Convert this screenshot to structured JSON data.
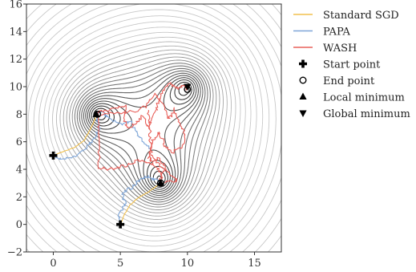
{
  "chart_data": {
    "type": "line",
    "title": "",
    "xlabel": "",
    "ylabel": "",
    "xlim": [
      -2,
      17
    ],
    "ylim": [
      -2,
      16
    ],
    "xticks": [
      0,
      5,
      10,
      15
    ],
    "yticks": [
      -2,
      0,
      2,
      4,
      6,
      8,
      10,
      12,
      14,
      16
    ],
    "grid": false,
    "legend_position": "outside-right",
    "contours": {
      "description_of_levels": "concentric level sets of a three-well loss surface",
      "wells": [
        {
          "x": 3.2,
          "y": 8.0
        },
        {
          "x": 8.0,
          "y": 3.0
        },
        {
          "x": 10.0,
          "y": 10.0
        }
      ],
      "inner_color": "#2b2b2b",
      "outer_color": "#bdbdbd"
    },
    "series": [
      {
        "name": "Standard SGD",
        "color": "#f2c14e",
        "paths": [
          [
            [
              0,
              5
            ],
            [
              0.8,
              5.3
            ],
            [
              1.6,
              5.6
            ],
            [
              2.3,
              6.1
            ],
            [
              2.7,
              6.8
            ],
            [
              3.0,
              7.4
            ],
            [
              3.2,
              7.9
            ],
            [
              3.35,
              8.1
            ]
          ],
          [
            [
              5,
              0
            ],
            [
              5.3,
              0.7
            ],
            [
              5.7,
              1.4
            ],
            [
              6.3,
              1.9
            ],
            [
              7.0,
              2.3
            ],
            [
              7.6,
              2.7
            ],
            [
              8.0,
              3.0
            ]
          ]
        ]
      },
      {
        "name": "PAPA",
        "color": "#7fa6d8",
        "paths": [
          [
            [
              0,
              5
            ],
            [
              0.6,
              4.7
            ],
            [
              1.5,
              4.9
            ],
            [
              2.4,
              5.5
            ],
            [
              3.0,
              6.2
            ],
            [
              3.4,
              6.9
            ],
            [
              3.3,
              7.6
            ],
            [
              3.1,
              8.0
            ],
            [
              3.6,
              8.2
            ],
            [
              4.3,
              7.6
            ],
            [
              5.0,
              7.3
            ],
            [
              5.8,
              7.4
            ],
            [
              6.3,
              6.6
            ],
            [
              6.6,
              6.1
            ],
            [
              7.3,
              5.5
            ]
          ],
          [
            [
              5,
              0
            ],
            [
              4.9,
              0.8
            ],
            [
              5.4,
              1.5
            ],
            [
              5.1,
              2.2
            ],
            [
              5.8,
              2.7
            ],
            [
              6.4,
              3.2
            ],
            [
              6.9,
              3.5
            ],
            [
              7.5,
              3.3
            ],
            [
              8.0,
              3.0
            ]
          ]
        ]
      },
      {
        "name": "WASH",
        "color": "#e8605a",
        "paths": [
          [
            [
              3.3,
              8.1
            ],
            [
              4.5,
              8.4
            ],
            [
              5.4,
              8.6
            ],
            [
              5.2,
              7.6
            ],
            [
              5.6,
              7.0
            ],
            [
              6.2,
              7.4
            ],
            [
              6.7,
              7.9
            ],
            [
              7.1,
              7.0
            ],
            [
              7.6,
              8.2
            ],
            [
              7.9,
              9.0
            ],
            [
              8.2,
              9.7
            ],
            [
              8.7,
              10.2
            ],
            [
              9.3,
              9.9
            ],
            [
              9.8,
              10.1
            ],
            [
              10.0,
              9.8
            ]
          ],
          [
            [
              3.6,
              8.0
            ],
            [
              4.8,
              8.1
            ],
            [
              6.0,
              8.2
            ],
            [
              7.0,
              8.6
            ],
            [
              7.5,
              9.6
            ],
            [
              8.2,
              8.7
            ],
            [
              8.6,
              7.6
            ],
            [
              9.0,
              8.4
            ],
            [
              9.4,
              7.3
            ],
            [
              9.8,
              6.6
            ],
            [
              9.6,
              5.6
            ],
            [
              8.8,
              5.2
            ],
            [
              8.3,
              5.8
            ],
            [
              7.9,
              6.7
            ],
            [
              7.4,
              6.2
            ],
            [
              7.1,
              5.0
            ],
            [
              7.3,
              4.6
            ],
            [
              7.9,
              4.8
            ],
            [
              8.3,
              4.2
            ],
            [
              8.0,
              3.4
            ],
            [
              8.0,
              3.0
            ]
          ],
          [
            [
              3.4,
              8.2
            ],
            [
              3.4,
              7.0
            ],
            [
              3.4,
              4.1
            ],
            [
              4.5,
              4.0
            ],
            [
              5.4,
              4.3
            ],
            [
              6.4,
              4.7
            ],
            [
              7.2,
              4.5
            ],
            [
              7.9,
              4.0
            ],
            [
              8.1,
              3.1
            ]
          ],
          [
            [
              7.1,
              8.2
            ],
            [
              7.2,
              7.2
            ],
            [
              7.2,
              6.2
            ],
            [
              7.3,
              5.2
            ],
            [
              7.9,
              4.3
            ],
            [
              8.6,
              3.8
            ],
            [
              9.2,
              3.2
            ],
            [
              8.3,
              3.0
            ]
          ]
        ]
      }
    ],
    "markers": [
      {
        "name": "Start point",
        "symbol": "plus",
        "points": [
          [
            0,
            5
          ],
          [
            5,
            0
          ]
        ]
      },
      {
        "name": "End point",
        "symbol": "circle-open",
        "points": [
          [
            3.3,
            8.0
          ],
          [
            8.0,
            3.0
          ],
          [
            10.0,
            9.8
          ]
        ]
      },
      {
        "name": "Local minimum",
        "symbol": "triangle-up",
        "points": [
          [
            3.2,
            8.0
          ],
          [
            8.0,
            3.0
          ]
        ]
      },
      {
        "name": "Global minimum",
        "symbol": "triangle-down",
        "points": [
          [
            10.0,
            10.0
          ]
        ]
      }
    ]
  }
}
